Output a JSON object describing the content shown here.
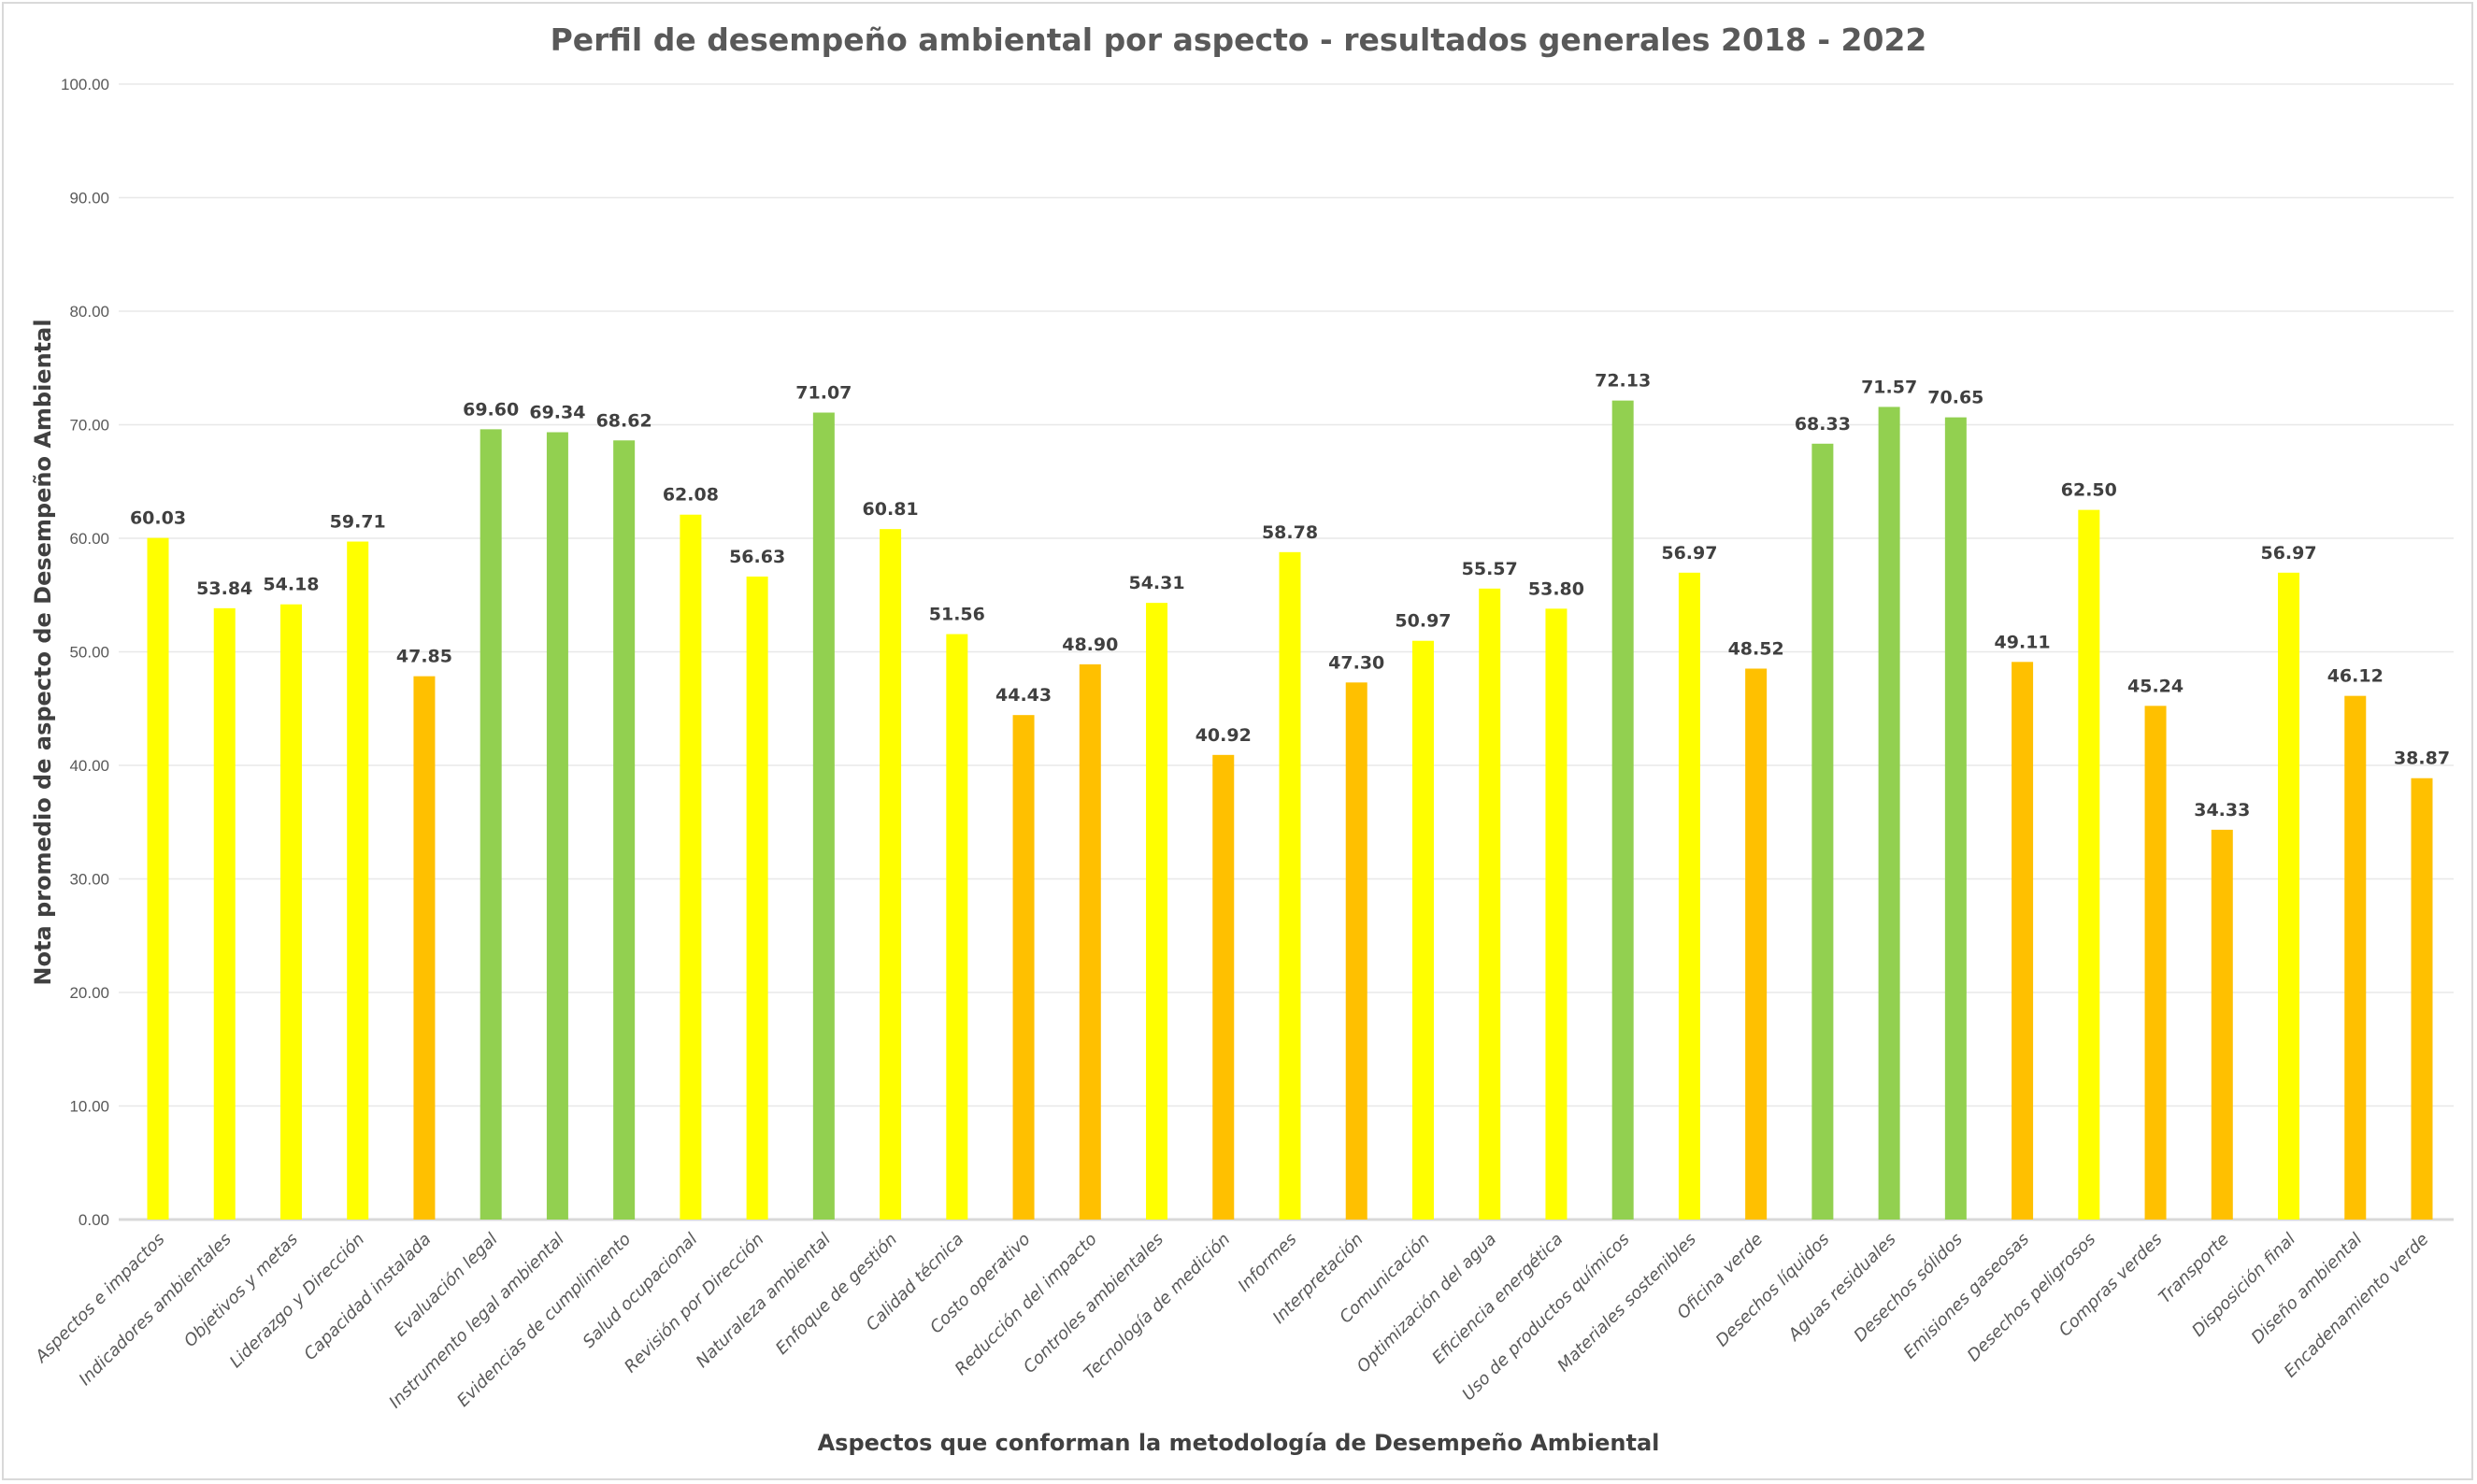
{
  "chart_data": {
    "type": "bar",
    "title": "Perfil de desempeño ambiental por aspecto - resultados generales  2018 - 2022",
    "xlabel": "Aspectos que conforman la metodología de Desempeño Ambiental",
    "ylabel": "Nota promedio de aspecto de Desempeño Ambiental",
    "ylim": [
      0,
      100
    ],
    "yticks": [
      "0.00",
      "10.00",
      "20.00",
      "30.00",
      "40.00",
      "50.00",
      "60.00",
      "70.00",
      "80.00",
      "90.00",
      "100.00"
    ],
    "grid": true,
    "legend": "none",
    "colors": {
      "high": "#92D050",
      "medium": "#FFFF00",
      "low": "#FFC000"
    },
    "categories": [
      "Aspectos e impactos",
      "Indicadores ambientales",
      "Objetivos y metas",
      "Liderazgo y Dirección",
      "Capacidad instalada",
      "Evaluación legal",
      "Instrumento legal ambiental",
      "Evidencias de cumplimiento",
      "Salud ocupacional",
      "Revisión por Dirección",
      "Naturaleza ambiental",
      "Enfoque de gestión",
      "Calidad técnica",
      "Costo operativo",
      "Reducción del impacto",
      "Controles ambientales",
      "Tecnología de medición",
      "Informes",
      "Interpretación",
      "Comunicación",
      "Optimización del agua",
      "Eficiencia energética",
      "Uso de productos químicos",
      "Materiales sostenibles",
      "Oficina verde",
      "Desechos líquidos",
      "Aguas residuales",
      "Desechos sólidos",
      "Emisiones gaseosas",
      "Desechos peligrosos",
      "Compras verdes",
      "Transporte",
      "Disposición final",
      "Diseño ambiental",
      "Encadenamiento verde"
    ],
    "values": [
      60.03,
      53.84,
      54.18,
      59.71,
      47.85,
      69.6,
      69.34,
      68.62,
      62.08,
      56.63,
      71.07,
      60.81,
      51.56,
      44.43,
      48.9,
      54.31,
      40.92,
      58.78,
      47.3,
      50.97,
      55.57,
      53.8,
      72.13,
      56.97,
      48.52,
      68.33,
      71.57,
      70.65,
      49.11,
      62.5,
      45.24,
      34.33,
      56.97,
      46.12,
      38.87
    ],
    "labels": [
      "60.03",
      "53.84",
      "54.18",
      "59.71",
      "47.85",
      "69.60",
      "69.34",
      "68.62",
      "62.08",
      "56.63",
      "71.07",
      "60.81",
      "51.56",
      "44.43",
      "48.90",
      "54.31",
      "40.92",
      "58.78",
      "47.30",
      "50.97",
      "55.57",
      "53.80",
      "72.13",
      "56.97",
      "48.52",
      "68.33",
      "71.57",
      "70.65",
      "49.11",
      "62.50",
      "45.24",
      "34.33",
      "56.97",
      "46.12",
      "38.87"
    ],
    "bar_colors": [
      "#FFFF00",
      "#FFFF00",
      "#FFFF00",
      "#FFFF00",
      "#FFC000",
      "#92D050",
      "#92D050",
      "#92D050",
      "#FFFF00",
      "#FFFF00",
      "#92D050",
      "#FFFF00",
      "#FFFF00",
      "#FFC000",
      "#FFC000",
      "#FFFF00",
      "#FFC000",
      "#FFFF00",
      "#FFC000",
      "#FFFF00",
      "#FFFF00",
      "#FFFF00",
      "#92D050",
      "#FFFF00",
      "#FFC000",
      "#92D050",
      "#92D050",
      "#92D050",
      "#FFC000",
      "#FFFF00",
      "#FFC000",
      "#FFC000",
      "#FFFF00",
      "#FFC000",
      "#FFC000"
    ]
  }
}
